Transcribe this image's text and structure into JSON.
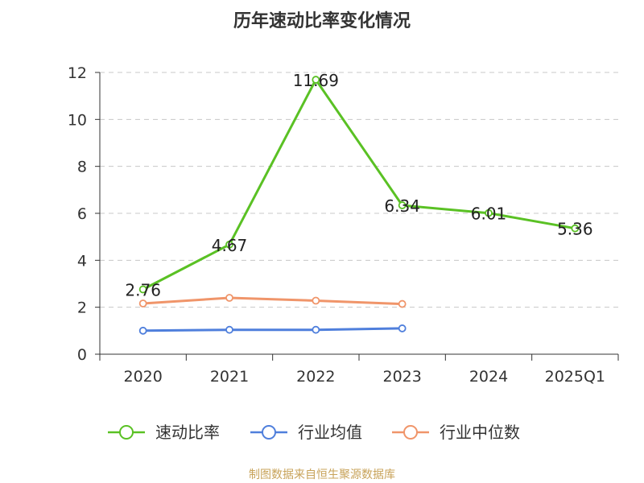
{
  "chart_data": {
    "type": "line",
    "title": "历年速动比率变化情况",
    "categories": [
      "2020",
      "2021",
      "2022",
      "2023",
      "2024",
      "2025Q1"
    ],
    "ylim": [
      0,
      12
    ],
    "yticks": [
      0,
      2,
      4,
      6,
      8,
      10,
      12
    ],
    "grid": true,
    "legend_position": "bottom",
    "series": [
      {
        "name": "速动比率",
        "color": "#5ac124",
        "values": [
          2.76,
          4.67,
          11.69,
          6.34,
          6.01,
          5.36
        ],
        "labels": [
          "2.76",
          "4.67",
          "11.69",
          "6.34",
          "6.01",
          "5.36"
        ]
      },
      {
        "name": "行业均值",
        "color": "#4f7fdc",
        "values": [
          1.0,
          1.04,
          1.04,
          1.1,
          null,
          null
        ]
      },
      {
        "name": "行业中位数",
        "color": "#f0956a",
        "values": [
          2.16,
          2.4,
          2.28,
          2.14,
          null,
          null
        ]
      }
    ],
    "source": "制图数据来自恒生聚源数据库"
  }
}
